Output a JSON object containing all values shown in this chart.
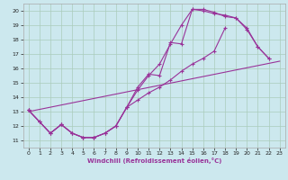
{
  "xlabel": "Windchill (Refroidissement éolien,°C)",
  "background_color": "#cce8ee",
  "grid_color": "#aaccbb",
  "line_color": "#993399",
  "xlim": [
    -0.5,
    23.5
  ],
  "ylim": [
    10.5,
    20.5
  ],
  "x_ticks": [
    0,
    1,
    2,
    3,
    4,
    5,
    6,
    7,
    8,
    9,
    10,
    11,
    12,
    13,
    14,
    15,
    16,
    17,
    18,
    19,
    20,
    21,
    22,
    23
  ],
  "y_ticks": [
    11,
    12,
    13,
    14,
    15,
    16,
    17,
    18,
    19,
    20
  ],
  "line1_x": [
    0,
    1,
    2,
    3,
    4,
    5,
    6,
    7,
    8,
    9,
    10,
    11,
    12,
    13,
    14,
    15,
    16,
    17,
    18,
    19,
    20,
    21,
    22
  ],
  "line1_y": [
    13.1,
    12.3,
    11.5,
    12.1,
    11.5,
    11.2,
    11.2,
    11.5,
    12.0,
    13.3,
    14.7,
    15.6,
    15.5,
    17.8,
    17.7,
    20.1,
    20.1,
    19.9,
    19.6,
    19.5,
    18.8,
    17.5,
    16.7
  ],
  "line2_x": [
    0,
    1,
    2,
    3,
    4,
    5,
    6,
    7,
    8,
    9,
    10,
    11,
    12,
    13,
    14,
    15,
    16,
    17,
    18,
    19,
    20,
    21,
    22,
    23
  ],
  "line2_y": [
    13.1,
    12.3,
    11.5,
    12.1,
    11.5,
    11.2,
    11.2,
    11.5,
    12.0,
    13.3,
    14.5,
    15.5,
    16.3,
    17.7,
    19.0,
    20.1,
    20.0,
    19.8,
    19.7,
    19.5,
    18.7,
    17.5,
    16.7,
    null
  ],
  "line3_x": [
    0,
    1,
    2,
    3,
    4,
    5,
    6,
    7,
    8,
    9,
    10,
    11,
    12,
    13,
    14,
    15,
    16,
    17,
    18,
    19,
    20,
    21,
    22,
    23
  ],
  "line3_y": [
    13.1,
    12.3,
    11.5,
    12.1,
    11.5,
    11.2,
    11.2,
    11.5,
    12.0,
    13.3,
    13.8,
    14.3,
    14.7,
    15.2,
    15.8,
    16.3,
    16.7,
    17.2,
    18.8,
    null,
    null,
    null,
    null,
    null
  ],
  "line4_x": [
    0,
    23
  ],
  "line4_y": [
    13.0,
    16.5
  ],
  "marker": "+",
  "markersize": 3,
  "linewidth": 0.8
}
